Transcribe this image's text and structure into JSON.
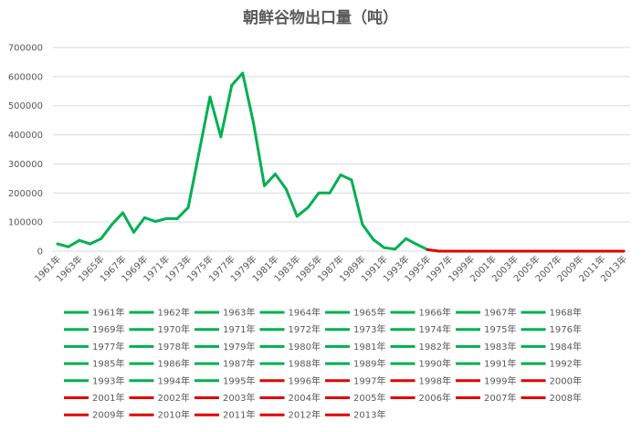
{
  "chart_data": {
    "type": "line",
    "title": "朝鲜谷物出口量（吨）",
    "xlabel": "",
    "ylabel": "",
    "ylim": [
      0,
      700000
    ],
    "yticks": [
      "0",
      "100000",
      "200000",
      "300000",
      "400000",
      "500000",
      "600000",
      "700000"
    ],
    "xticks": [
      "1961年",
      "1963年",
      "1965年",
      "1967年",
      "1969年",
      "1971年",
      "1973年",
      "1975年",
      "1977年",
      "1979年",
      "1981年",
      "1983年",
      "1985年",
      "1987年",
      "1989年",
      "1991年",
      "1993年",
      "1995年",
      "1997年",
      "1999年",
      "2001年",
      "2003年",
      "2005年",
      "2007年",
      "2009年",
      "2011年",
      "2013年"
    ],
    "grid": true,
    "legend_position": "bottom",
    "colors": {
      "before_1996": "#00b050",
      "from_1996": "#e00000",
      "grid": "#d9d9d9"
    },
    "x": [
      "1961年",
      "1962年",
      "1963年",
      "1964年",
      "1965年",
      "1966年",
      "1967年",
      "1968年",
      "1969年",
      "1970年",
      "1971年",
      "1972年",
      "1973年",
      "1974年",
      "1975年",
      "1976年",
      "1977年",
      "1978年",
      "1979年",
      "1980年",
      "1981年",
      "1982年",
      "1983年",
      "1984年",
      "1985年",
      "1986年",
      "1987年",
      "1988年",
      "1989年",
      "1990年",
      "1991年",
      "1992年",
      "1993年",
      "1994年",
      "1995年",
      "1996年",
      "1997年",
      "1998年",
      "1999年",
      "2000年",
      "2001年",
      "2002年",
      "2003年",
      "2004年",
      "2005年",
      "2006年",
      "2007年",
      "2008年",
      "2009年",
      "2010年",
      "2011年",
      "2012年",
      "2013年"
    ],
    "values": [
      25000,
      15000,
      37000,
      25000,
      43000,
      92000,
      132000,
      65000,
      115000,
      102000,
      112000,
      112000,
      150000,
      340000,
      530000,
      393000,
      570000,
      612000,
      440000,
      225000,
      265000,
      213000,
      120000,
      150000,
      200000,
      200000,
      262000,
      245000,
      92000,
      40000,
      12000,
      7000,
      43000,
      23000,
      5000,
      0,
      0,
      0,
      0,
      0,
      0,
      0,
      0,
      0,
      0,
      0,
      0,
      0,
      0,
      0,
      0,
      0,
      0
    ]
  }
}
